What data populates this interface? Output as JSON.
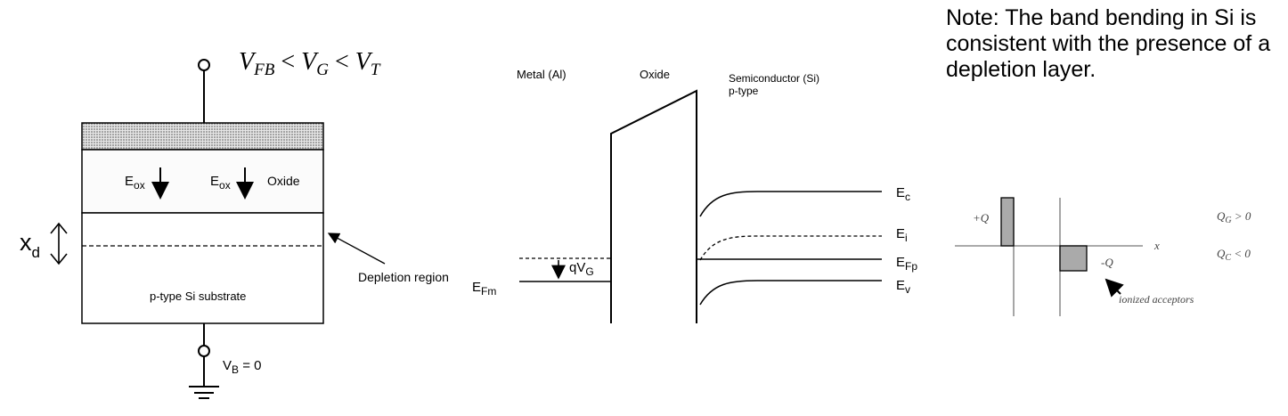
{
  "mos_structure": {
    "bias_condition": {
      "v1": "V",
      "s1": "FB",
      "rel1": " < ",
      "v2": "V",
      "s2": "G",
      "rel2": " < ",
      "v3": "V",
      "s3": "T"
    },
    "eox_label_left": {
      "main": "E",
      "sub": "ox"
    },
    "eox_label_right": {
      "main": "E",
      "sub": "ox"
    },
    "oxide_label": "Oxide",
    "xd_label": {
      "main": "x",
      "sub": "d"
    },
    "depletion_label": "Depletion region",
    "substrate_label": "p-type Si substrate",
    "vb_label": {
      "main": "V",
      "sub": "B",
      "rest": " = 0"
    }
  },
  "band_diagram": {
    "metal_label": "Metal (Al)",
    "oxide_label": "Oxide",
    "semi_label_line1": "Semiconductor (Si)",
    "semi_label_line2": "p-type",
    "efm_label": {
      "main": "E",
      "sub": "Fm"
    },
    "qvg_label": {
      "main": "qV",
      "sub": "G"
    },
    "ec_label": {
      "main": "E",
      "sub": "c"
    },
    "ei_label": {
      "main": "E",
      "sub": "i"
    },
    "efp_label": {
      "main": "E",
      "sub": "Fp"
    },
    "ev_label": {
      "main": "E",
      "sub": "v"
    }
  },
  "note": "Note: The band bending in Si is consistent with the presence of a depletion layer.",
  "charge_diagram": {
    "plus_q": "+Q",
    "minus_q": "-Q",
    "x_label": "x",
    "qg_label": "Q",
    "qg_sub": "G",
    "qg_cond": " > 0",
    "qc_label": "Q",
    "qc_sub": "C",
    "qc_cond": " < 0",
    "acceptors_label": "ionized acceptors"
  },
  "colors": {
    "line": "#000000",
    "fill_gray": "#aaaaaa",
    "axis_gray": "#777777"
  }
}
